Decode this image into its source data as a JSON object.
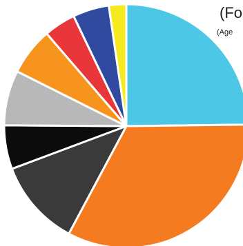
{
  "chart_data": {
    "type": "pie",
    "title": "(Fo",
    "subtitle": "(Age",
    "slices": [
      {
        "value": 24.8,
        "color": "#4cc8e6"
      },
      {
        "value": 33.0,
        "color": "#f47b20"
      },
      {
        "value": 11.5,
        "color": "#3a3a3a"
      },
      {
        "value": 5.8,
        "color": "#0c0c0c"
      },
      {
        "value": 7.3,
        "color": "#b8b8b8"
      },
      {
        "value": 6.3,
        "color": "#f7941d"
      },
      {
        "value": 4.2,
        "color": "#e8363a"
      },
      {
        "value": 4.8,
        "color": "#2f4a9e"
      },
      {
        "value": 2.3,
        "color": "#f5ea20"
      }
    ]
  }
}
